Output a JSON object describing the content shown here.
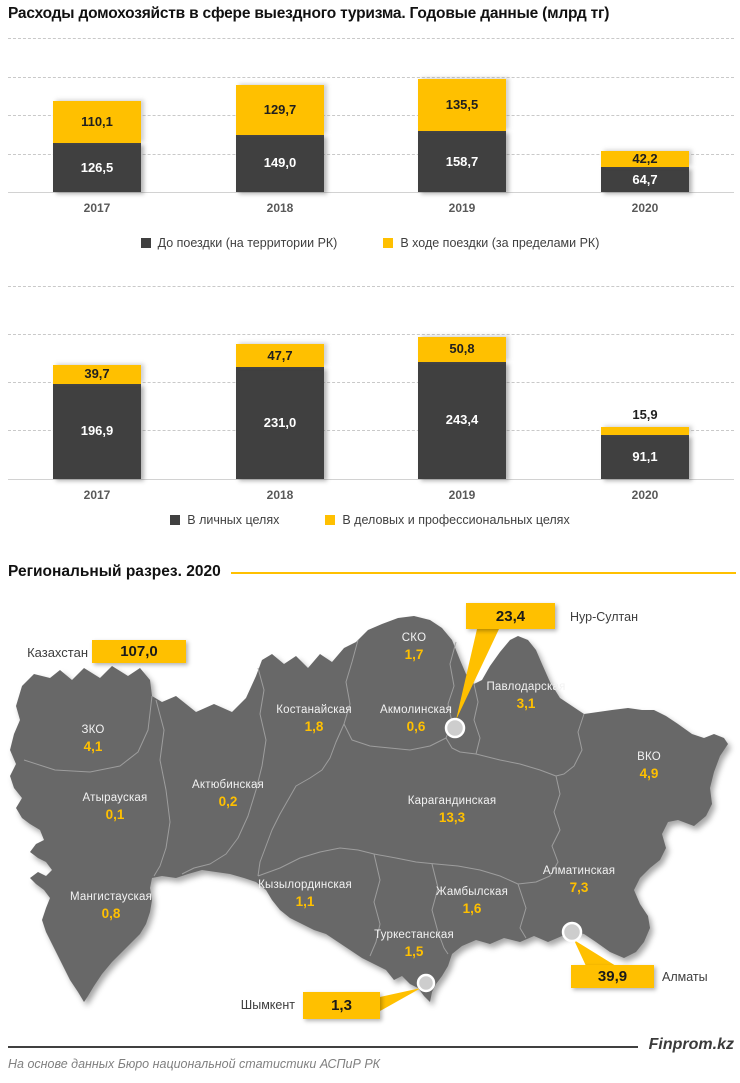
{
  "title": "Расходы домохозяйств в сфере выездного туризма. Годовые данные (млрд тг)",
  "colors": {
    "accent": "#FFC000",
    "dark_bar": "#404040",
    "map_fill": "#686868"
  },
  "chart_data": [
    {
      "type": "bar",
      "stacked": true,
      "categories": [
        "2017",
        "2018",
        "2019",
        "2020"
      ],
      "series": [
        {
          "name": "До поездки (на территории РК)",
          "color": "#404040",
          "values": [
            126.5,
            149.0,
            158.7,
            64.7
          ]
        },
        {
          "name": "В ходе поездки (за пределами РК)",
          "color": "#FFC000",
          "values": [
            110.1,
            129.7,
            135.5,
            42.2
          ]
        }
      ],
      "ylim": [
        0,
        400
      ],
      "grid": "dashed horizontal every 100",
      "legend_position": "bottom"
    },
    {
      "type": "bar",
      "stacked": true,
      "categories": [
        "2017",
        "2018",
        "2019",
        "2020"
      ],
      "series": [
        {
          "name": "В личных целях",
          "color": "#404040",
          "values": [
            196.9,
            231.0,
            243.4,
            91.1
          ]
        },
        {
          "name": "В деловых и профессиональных целях",
          "color": "#FFC000",
          "values": [
            39.7,
            47.7,
            50.8,
            15.9
          ]
        }
      ],
      "ylim": [
        0,
        400
      ],
      "grid": "dashed horizontal every 100",
      "legend_position": "bottom"
    }
  ],
  "region_section": {
    "title": "Региональный разрез. 2020",
    "country": {
      "label": "Казахстан",
      "value": 107.0
    },
    "regions": [
      {
        "name": "СКО",
        "value": 1.7
      },
      {
        "name": "Костанайская",
        "value": 1.8
      },
      {
        "name": "Акмолинская",
        "value": 0.6
      },
      {
        "name": "Павлодарская",
        "value": 3.1
      },
      {
        "name": "ВКО",
        "value": 4.9
      },
      {
        "name": "ЗКО",
        "value": 4.1
      },
      {
        "name": "Атырауская",
        "value": 0.1
      },
      {
        "name": "Актюбинская",
        "value": 0.2
      },
      {
        "name": "Карагандинская",
        "value": 13.3
      },
      {
        "name": "Мангистауская",
        "value": 0.8
      },
      {
        "name": "Кызылординская",
        "value": 1.1
      },
      {
        "name": "Жамбылская",
        "value": 1.6
      },
      {
        "name": "Туркестанская",
        "value": 1.5
      },
      {
        "name": "Алматинская",
        "value": 7.3
      }
    ],
    "city_callouts": [
      {
        "city": "Нур-Султан",
        "value": 23.4
      },
      {
        "city": "Алматы",
        "value": 39.9
      },
      {
        "city": "Шымкент",
        "value": 1.3
      }
    ]
  },
  "footer": {
    "brand": "Finprom.kz",
    "source": "На основе данных Бюро национальной статистики АСПиР РК"
  }
}
